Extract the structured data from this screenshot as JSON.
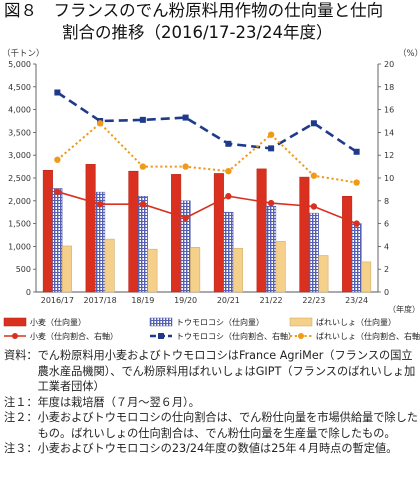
{
  "title": {
    "line1": "図８　フランスのでん粉原料用作物の仕向量と仕向",
    "line2": "割合の推移（2016/17-23/24年度）"
  },
  "chart_data": {
    "type": "bar",
    "categories": [
      "2016/17",
      "2017/18",
      "18/19",
      "19/20",
      "20/21",
      "21/22",
      "22/23",
      "23/24"
    ],
    "series": [
      {
        "name": "小麦（仕向量）",
        "kind": "bar",
        "axis": "left",
        "color": "#d9301f",
        "values": [
          2670,
          2800,
          2650,
          2580,
          2600,
          2700,
          2520,
          2100
        ]
      },
      {
        "name": "トウモロコシ（仕向量）",
        "kind": "bar",
        "axis": "left",
        "color": "#7c86c6",
        "values": [
          2270,
          2190,
          2100,
          2000,
          1750,
          1880,
          1730,
          1500
        ]
      },
      {
        "name": "ばれいしょ（仕向量）",
        "kind": "bar",
        "axis": "left",
        "color": "#f5d08a",
        "values": [
          1010,
          1160,
          940,
          980,
          960,
          1110,
          800,
          660
        ]
      },
      {
        "name": "小麦（仕向割合、右軸）",
        "kind": "line",
        "axis": "right",
        "color": "#d9301f",
        "values": [
          8.8,
          7.7,
          7.7,
          6.5,
          8.4,
          7.8,
          7.5,
          6.0
        ]
      },
      {
        "name": "トウモロコシ（仕向割合、右軸）",
        "kind": "line",
        "axis": "right",
        "color": "#1f3a8a",
        "values": [
          17.5,
          15.0,
          15.1,
          15.3,
          13.0,
          12.6,
          14.8,
          12.3
        ]
      },
      {
        "name": "ばれいしょ（仕向割合、右軸）",
        "kind": "line",
        "axis": "right",
        "color": "#ef9a1a",
        "values": [
          11.6,
          14.8,
          11.0,
          11.0,
          10.6,
          13.8,
          10.2,
          9.6
        ]
      }
    ],
    "y_left": {
      "label": "（千トン）",
      "min": 0,
      "max": 5000,
      "step": 500,
      "ticks": [
        "0",
        "500",
        "1,000",
        "1,500",
        "2,000",
        "2,500",
        "3,000",
        "3,500",
        "4,000",
        "4,500",
        "5,000"
      ]
    },
    "y_right": {
      "label": "（%）",
      "min": 0,
      "max": 20,
      "step": 2,
      "ticks": [
        "0",
        "2",
        "4",
        "6",
        "8",
        "10",
        "12",
        "14",
        "16",
        "18",
        "20"
      ]
    },
    "x_unit": "（年度）",
    "grid": false,
    "legend_position": "bottom"
  },
  "notes": [
    {
      "label": "資料：",
      "text": "でん粉原料用小麦およびトウモロコシはFrance AgriMer（フランスの国立農水産品機関）、でん粉原料用ばれいしょはGIPT（フランスのばれいしょ加工業者団体）"
    },
    {
      "label": "注１：",
      "text": "年度は栽培暦（７月～翌６月）。"
    },
    {
      "label": "注２：",
      "text": "小麦およびトウモロコシの仕向割合は、でん粉仕向量を市場供給量で除したもの。ばれいしょの仕向割合は、でん粉仕向量を生産量で除したもの。"
    },
    {
      "label": "注３：",
      "text": "小麦およびトウモロコシの23/24年度の数値は25年４月時点の暫定値。"
    }
  ]
}
